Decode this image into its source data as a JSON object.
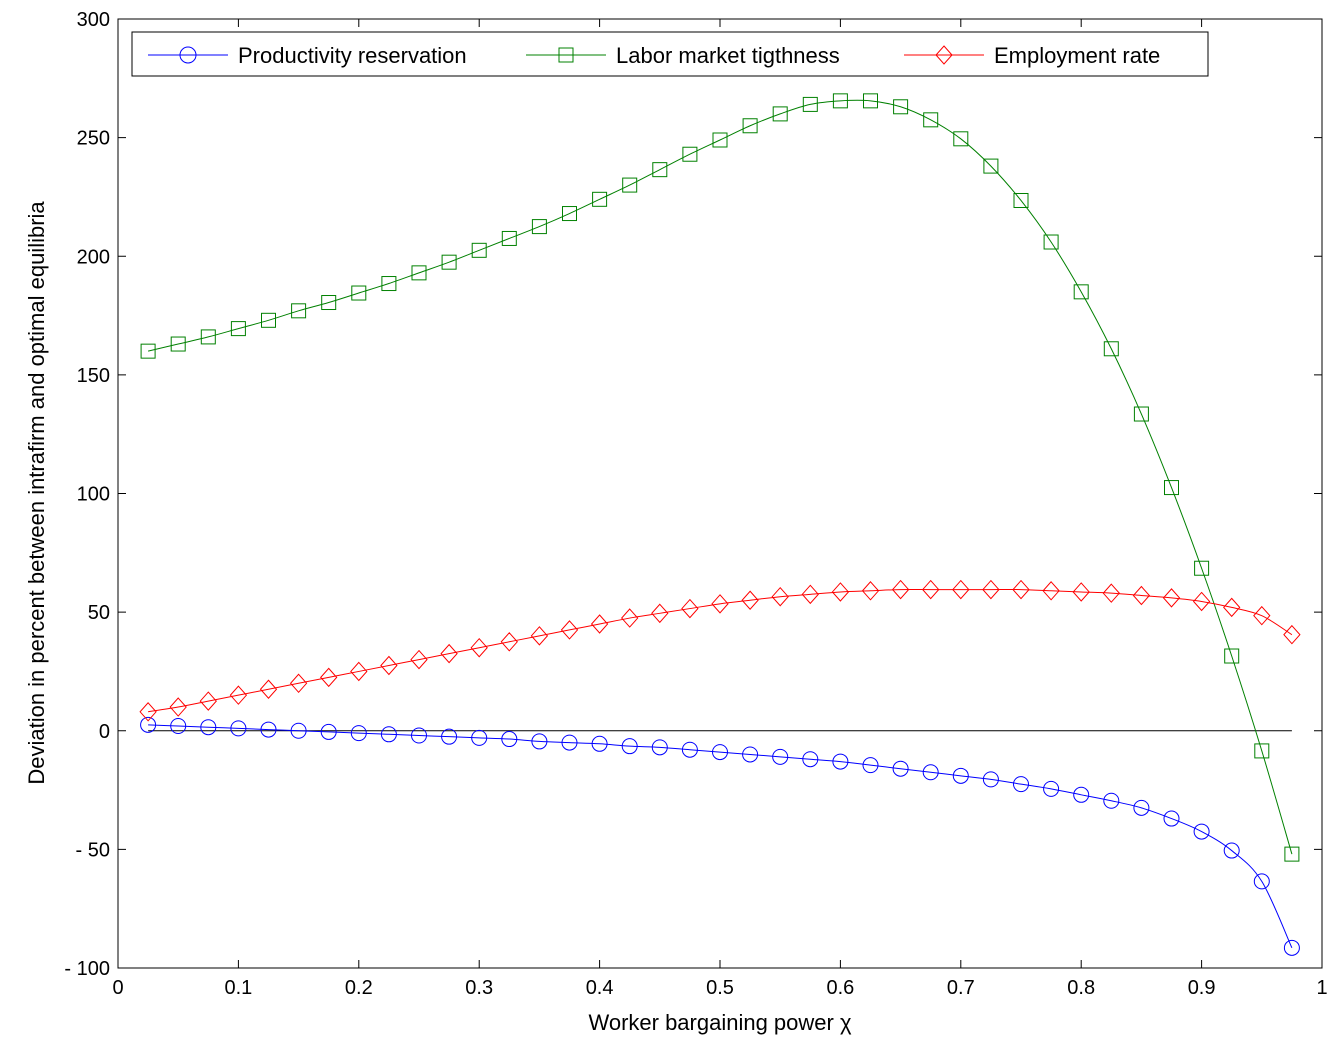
{
  "chart_data": {
    "type": "line",
    "title": "",
    "xlabel": "Worker bargaining power χ",
    "ylabel": "Deviation in percent between intrafirm and optimal equilibria",
    "xlim": [
      0,
      1
    ],
    "ylim": [
      -100,
      300
    ],
    "xticks": [
      "0",
      "0.1",
      "0.2",
      "0.3",
      "0.4",
      "0.5",
      "0.6",
      "0.7",
      "0.8",
      "0.9",
      "1"
    ],
    "yticks": [
      "- 100",
      "- 50",
      "0",
      "50",
      "100",
      "150",
      "200",
      "250",
      "300"
    ],
    "grid": false,
    "legend_position": "top",
    "reference_line_y": 0,
    "x": [
      0.025,
      0.05,
      0.075,
      0.1,
      0.125,
      0.15,
      0.175,
      0.2,
      0.225,
      0.25,
      0.275,
      0.3,
      0.325,
      0.35,
      0.375,
      0.4,
      0.425,
      0.45,
      0.475,
      0.5,
      0.525,
      0.55,
      0.575,
      0.6,
      0.625,
      0.65,
      0.675,
      0.7,
      0.725,
      0.75,
      0.775,
      0.8,
      0.825,
      0.85,
      0.875,
      0.9,
      0.925,
      0.95,
      0.975
    ],
    "series": [
      {
        "name": "Productivity reservation",
        "color": "#0000ff",
        "marker": "circle",
        "values": [
          2.5,
          2,
          1.5,
          1,
          0.5,
          0,
          -0.5,
          -1,
          -1.5,
          -2,
          -2.5,
          -3,
          -3.5,
          -4.5,
          -5,
          -5.5,
          -6.5,
          -7,
          -8,
          -9,
          -10,
          -11,
          -12,
          -13,
          -14.5,
          -16,
          -17.5,
          -19,
          -20.5,
          -22.5,
          -24.5,
          -27,
          -29.5,
          -32.5,
          -37,
          -42.5,
          -50.5,
          -63.5,
          -91.5
        ]
      },
      {
        "name": "Labor market tigthness",
        "color": "#008000",
        "marker": "square",
        "values": [
          160,
          163,
          166,
          169.5,
          173,
          177,
          180.5,
          184.5,
          188.5,
          193,
          197.5,
          202.5,
          207.5,
          212.5,
          218,
          224,
          230,
          236.5,
          243,
          249,
          255,
          260,
          264,
          265.5,
          265.5,
          263,
          257.5,
          249.5,
          238,
          223.5,
          206,
          185,
          161,
          133.5,
          102.5,
          68.5,
          31.5,
          -8.5,
          -52
        ]
      },
      {
        "name": "Employment rate",
        "color": "#ff0000",
        "marker": "diamond",
        "values": [
          8,
          10,
          12.5,
          15,
          17.5,
          20,
          22.5,
          25,
          27.5,
          30,
          32.5,
          35,
          37.5,
          40,
          42.5,
          45,
          47.5,
          49.5,
          51.5,
          53.5,
          55,
          56.5,
          57.5,
          58.5,
          59,
          59.5,
          59.5,
          59.5,
          59.5,
          59.5,
          59,
          58.5,
          58,
          57,
          56,
          54.5,
          52,
          48.5,
          40.5
        ]
      }
    ]
  }
}
